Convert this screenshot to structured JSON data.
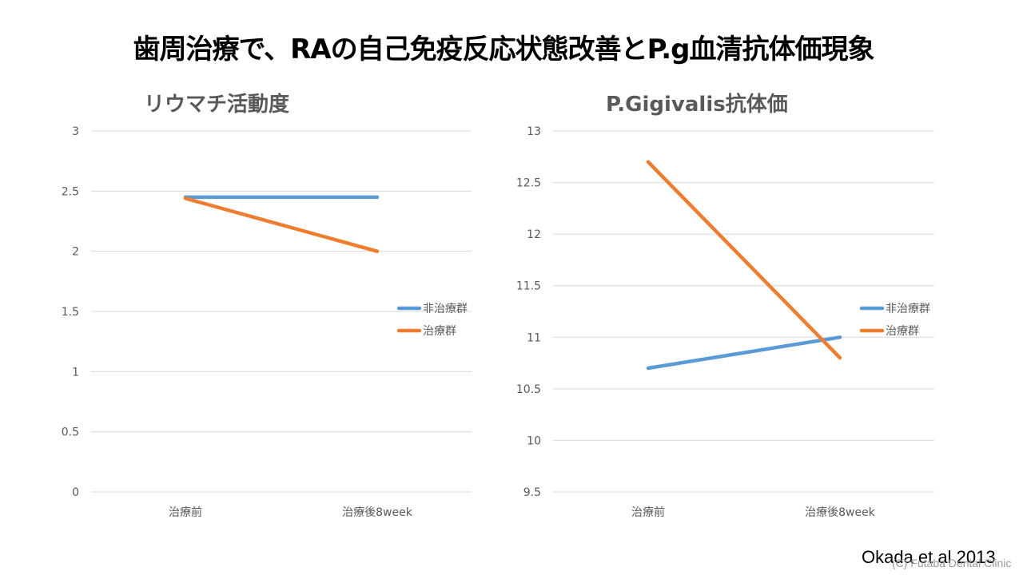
{
  "slide": {
    "title": "歯周治療で、RAの自己免疫反応状態改善とP.g血清抗体価現象",
    "citation": "Okada et al 2013",
    "watermark": "(C) Futaba Dental Clinic"
  },
  "colors": {
    "blue": "#5b9bd5",
    "orange": "#ed7d31",
    "grid": "#d9d9d9",
    "text": "#595959"
  },
  "chart_data": [
    {
      "type": "line",
      "title": "リウマチ活動度",
      "categories": [
        "治療前",
        "治療後8week"
      ],
      "series": [
        {
          "name": "非治療群",
          "values": [
            2.45,
            2.45
          ]
        },
        {
          "name": "治療群",
          "values": [
            2.44,
            2.0
          ]
        }
      ],
      "ylim": [
        0,
        3
      ],
      "yticks": [
        "0",
        "0.5",
        "1",
        "1.5",
        "2",
        "2.5",
        "3"
      ],
      "grid": true,
      "legend": "right"
    },
    {
      "type": "line",
      "title": "P.Gigivalis抗体価",
      "categories": [
        "治療前",
        "治療後8week"
      ],
      "series": [
        {
          "name": "非治療群",
          "values": [
            10.7,
            11.0
          ]
        },
        {
          "name": "治療群",
          "values": [
            12.7,
            10.8
          ]
        }
      ],
      "ylim": [
        9.5,
        13
      ],
      "yticks": [
        "9.5",
        "10",
        "10.5",
        "11",
        "11.5",
        "12",
        "12.5",
        "13"
      ],
      "grid": true,
      "legend": "right"
    }
  ]
}
